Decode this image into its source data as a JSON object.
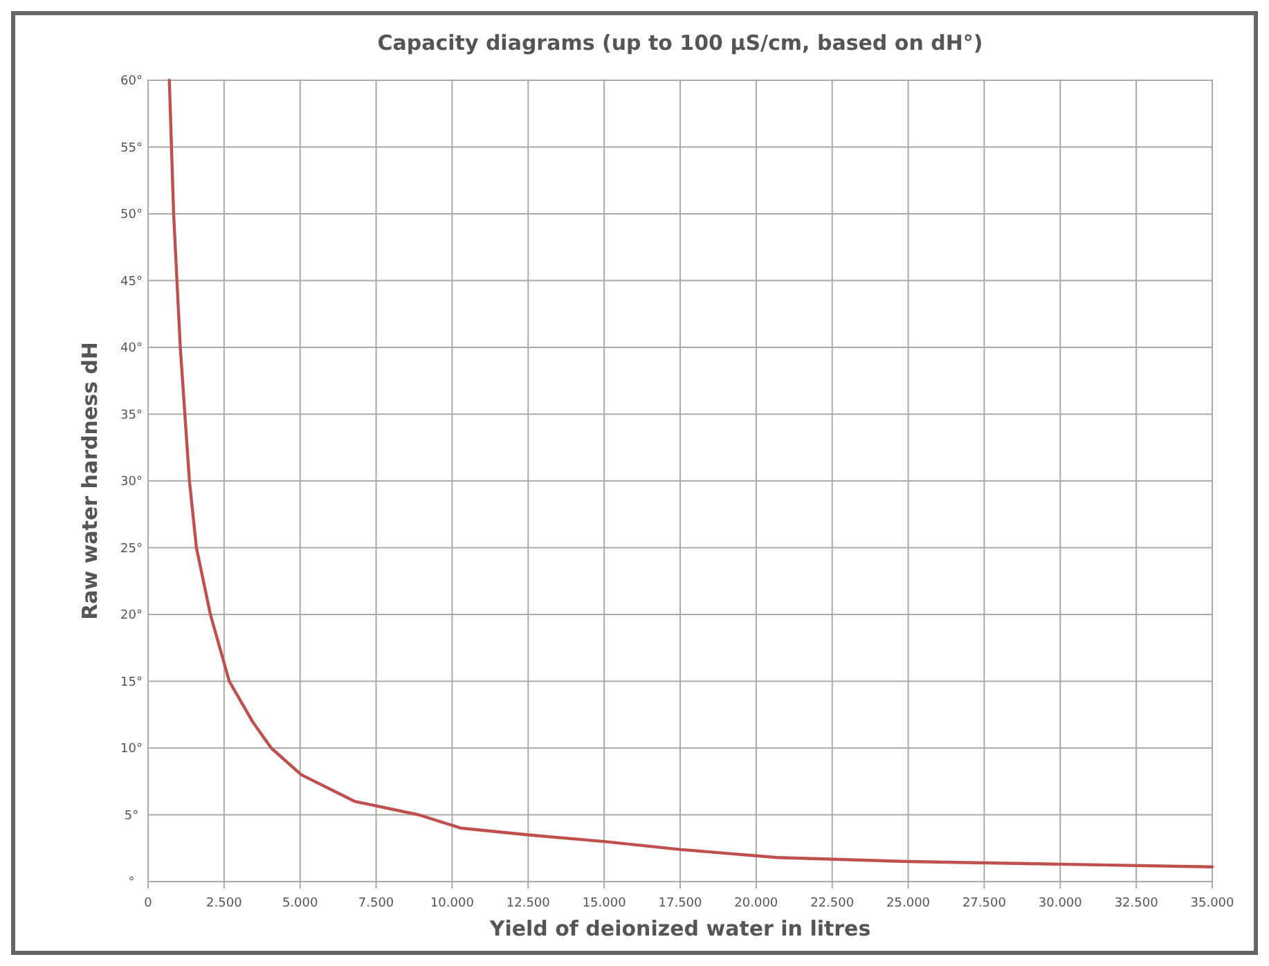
{
  "chart_data": {
    "type": "line",
    "title": "Capacity diagrams (up to 100 µS/cm, based on dH°)",
    "xlabel": "Yield of deionized water in litres",
    "ylabel": "Raw water hardness dH",
    "x": [
      700,
      840,
      1060,
      1210,
      1360,
      1590,
      2050,
      2670,
      3430,
      4050,
      5040,
      6800,
      8900,
      10300,
      12500,
      15000,
      17500,
      20700,
      25000,
      30000,
      35000
    ],
    "series": [
      {
        "color": "#c0504d",
        "values": [
          60,
          50,
          40,
          35,
          30,
          25,
          20,
          15,
          12,
          10,
          8,
          6,
          5,
          4,
          3.5,
          3,
          2.4,
          1.8,
          1.5,
          1.3,
          1.1
        ]
      }
    ],
    "xlim": [
      0,
      35000
    ],
    "ylim": [
      0,
      60
    ],
    "xticks": [
      0,
      {
        "value": 2500,
        "label": "2.500"
      },
      {
        "value": 5000,
        "label": "5.000"
      },
      {
        "value": 7500,
        "label": "7.500"
      },
      {
        "value": 10000,
        "label": "10.000"
      },
      {
        "value": 12500,
        "label": "12.500"
      },
      {
        "value": 15000,
        "label": "15.000"
      },
      {
        "value": 17500,
        "label": "17.500"
      },
      {
        "value": 20000,
        "label": "20.000"
      },
      {
        "value": 22500,
        "label": "22.500"
      },
      {
        "value": 25000,
        "label": "25.000"
      },
      {
        "value": 27500,
        "label": "27.500"
      },
      {
        "value": 30000,
        "label": "30.000"
      },
      {
        "value": 32500,
        "label": "32.500"
      },
      {
        "value": 35000,
        "label": "35.000"
      }
    ],
    "yticks": [
      {
        "value": 0,
        "label": "°"
      },
      {
        "value": 5,
        "label": "5°"
      },
      {
        "value": 10,
        "label": "10°"
      },
      {
        "value": 15,
        "label": "15°"
      },
      {
        "value": 20,
        "label": "20°"
      },
      {
        "value": 25,
        "label": "25°"
      },
      {
        "value": 30,
        "label": "30°"
      },
      {
        "value": 35,
        "label": "35°"
      },
      {
        "value": 40,
        "label": "40°"
      },
      {
        "value": 45,
        "label": "45°"
      },
      {
        "value": 50,
        "label": "50°"
      },
      {
        "value": 55,
        "label": "55°"
      },
      {
        "value": 60,
        "label": "60°"
      }
    ],
    "grid": true,
    "marker": "none",
    "line_style": "solid"
  }
}
